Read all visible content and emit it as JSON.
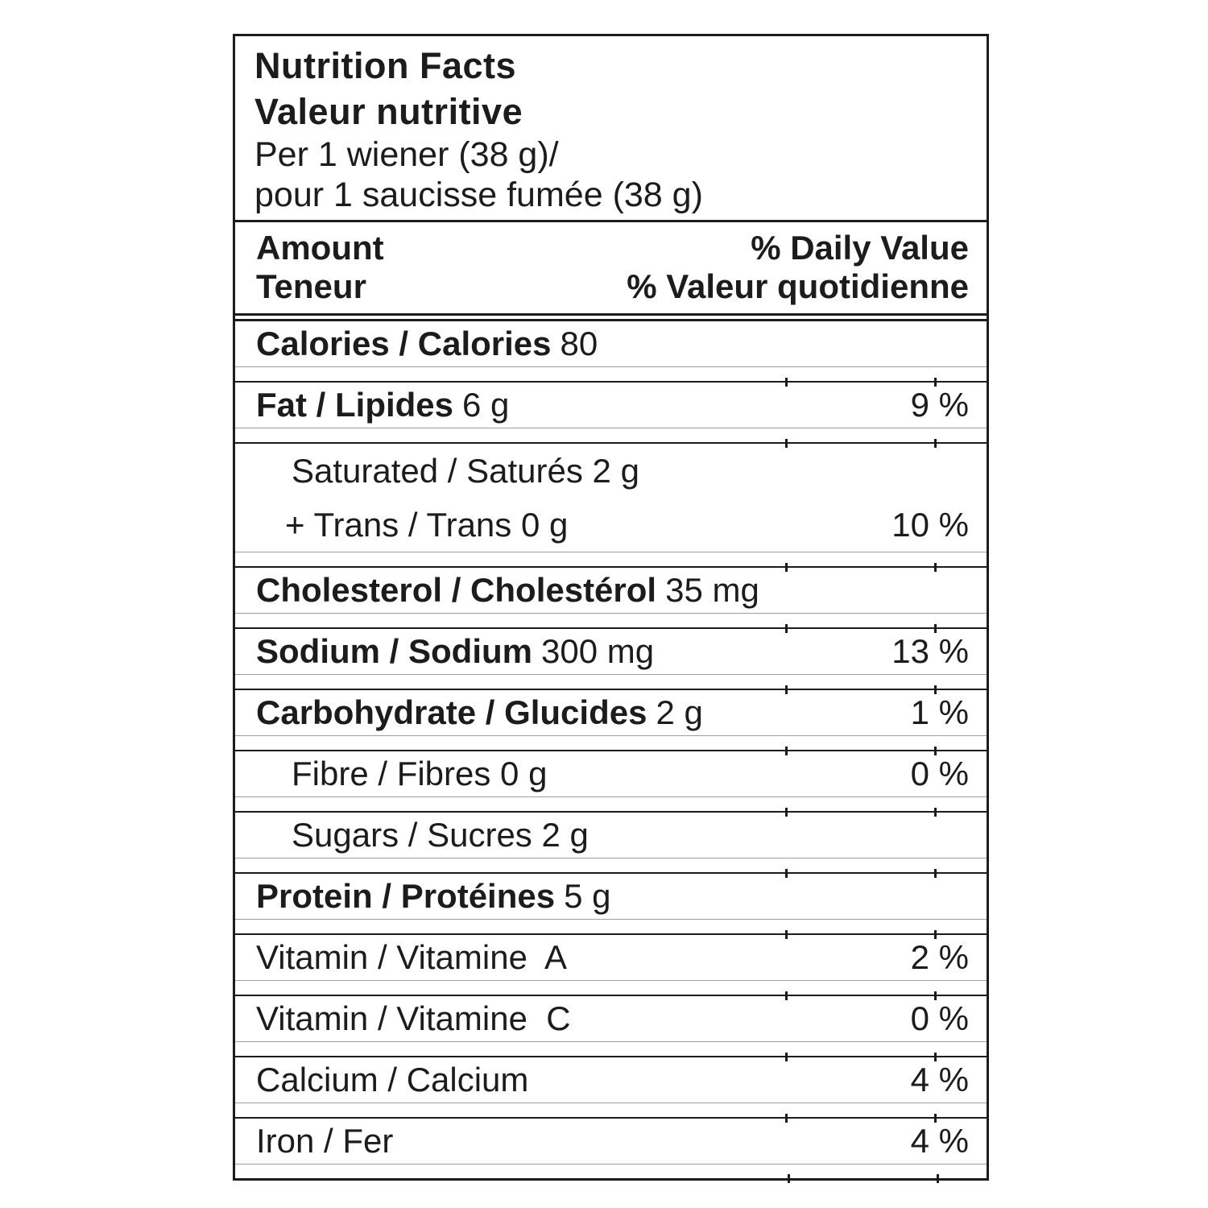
{
  "label": {
    "header": {
      "title_en": "Nutrition Facts",
      "title_fr": "Valeur nutritive",
      "serving_en": "Per 1 wiener (38 g)/",
      "serving_fr": "pour 1 saucisse fumée (38 g)"
    },
    "amount_header": {
      "amount_en": "Amount",
      "amount_fr": "Teneur",
      "daily_value_en": "% Daily Value",
      "daily_value_fr": "% Valeur quotidienne"
    },
    "rows": [
      {
        "lines": [
          {
            "label": "Calories / Calories",
            "bold": true,
            "value": "80",
            "percent": "",
            "indent": 0
          }
        ]
      },
      {
        "lines": [
          {
            "label": "Fat / Lipides",
            "bold": true,
            "value": "6 g",
            "percent": "9 %",
            "indent": 0
          }
        ]
      },
      {
        "lines": [
          {
            "label": "Saturated / Saturés 2 g",
            "bold": false,
            "value": "",
            "percent": "",
            "indent": 1
          },
          {
            "label": "+ Trans / Trans 0 g",
            "bold": false,
            "value": "",
            "percent": "10 %",
            "indent": 2
          }
        ]
      },
      {
        "lines": [
          {
            "label": "Cholesterol / Cholestérol",
            "bold": true,
            "value": "35 mg",
            "percent": "",
            "indent": 0
          }
        ]
      },
      {
        "lines": [
          {
            "label": "Sodium / Sodium",
            "bold": true,
            "value": "300 mg",
            "percent": "13 %",
            "indent": 0
          }
        ]
      },
      {
        "lines": [
          {
            "label": "Carbohydrate / Glucides",
            "bold": true,
            "value": "2 g",
            "percent": "1 %",
            "indent": 0
          }
        ]
      },
      {
        "lines": [
          {
            "label": "Fibre / Fibres 0 g",
            "bold": false,
            "value": "",
            "percent": "0 %",
            "indent": 1
          }
        ]
      },
      {
        "lines": [
          {
            "label": "Sugars / Sucres 2 g",
            "bold": false,
            "value": "",
            "percent": "",
            "indent": 1
          }
        ]
      },
      {
        "lines": [
          {
            "label": "Protein / Protéines",
            "bold": true,
            "value": "5 g",
            "percent": "",
            "indent": 0
          }
        ]
      },
      {
        "lines": [
          {
            "label": "Vitamin / Vitamine  A",
            "bold": false,
            "value": "",
            "percent": "2 %",
            "indent": 0
          }
        ]
      },
      {
        "lines": [
          {
            "label": "Vitamin / Vitamine  C",
            "bold": false,
            "value": "",
            "percent": "0 %",
            "indent": 0
          }
        ]
      },
      {
        "lines": [
          {
            "label": "Calcium / Calcium",
            "bold": false,
            "value": "",
            "percent": "4 %",
            "indent": 0
          }
        ]
      },
      {
        "lines": [
          {
            "label": "Iron / Fer",
            "bold": false,
            "value": "",
            "percent": "4 %",
            "indent": 0
          }
        ]
      }
    ]
  },
  "colors": {
    "ink": "#1c1c1c",
    "thin_rule": "#9e9e9e",
    "background": "#ffffff"
  }
}
